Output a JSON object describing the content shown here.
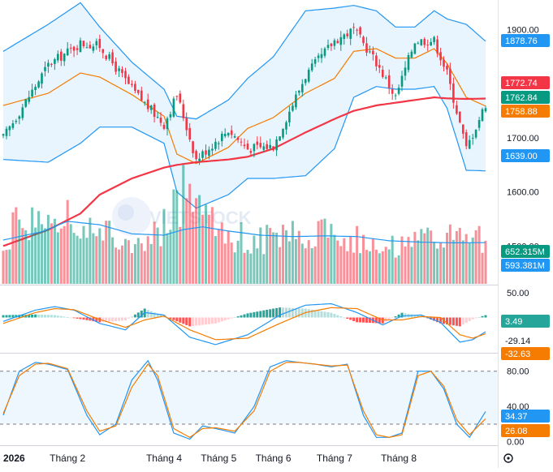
{
  "chart_data": [
    {
      "type": "candlestick",
      "panel": "price",
      "yticks": [
        1900,
        1800,
        1700,
        1600,
        1500
      ],
      "ytick_labels": [
        "1900.00",
        "1800.00",
        "1700.00",
        "1600.00",
        "1500.00"
      ],
      "ylim": [
        1430,
        1955
      ],
      "overlays": [
        {
          "label": "1878.76",
          "role": "bollinger-upper",
          "value": 1878.76,
          "color": "#2196f3"
        },
        {
          "label": "1772.74",
          "role": "ma200",
          "value": 1772.74,
          "color": "#f23645"
        },
        {
          "label": "1762.84",
          "role": "last-close",
          "value": 1762.84,
          "color": "#089981"
        },
        {
          "label": "1758.88",
          "role": "bollinger-middle",
          "value": 1758.88,
          "color": "#f57c00"
        },
        {
          "label": "1639.00",
          "role": "bollinger-lower",
          "value": 1639.0,
          "color": "#2196f3"
        }
      ],
      "x_keypoints": [
        0,
        14,
        24,
        30,
        40,
        50,
        54,
        60,
        70,
        76,
        84,
        94,
        103,
        109,
        116,
        122,
        128,
        134,
        138,
        144,
        150
      ],
      "close_keypoints": [
        1700,
        1835,
        1875,
        1870,
        1790,
        1725,
        1780,
        1660,
        1715,
        1680,
        1685,
        1815,
        1880,
        1900,
        1840,
        1775,
        1880,
        1880,
        1820,
        1680,
        1762.84
      ],
      "upper_keypoints": [
        1860,
        1910,
        1950,
        1905,
        1840,
        1790,
        1740,
        1735,
        1770,
        1810,
        1850,
        1935,
        1940,
        1945,
        1935,
        1905,
        1905,
        1935,
        1920,
        1910,
        1878.76
      ],
      "lower_keypoints": [
        1660,
        1655,
        1690,
        1720,
        1720,
        1690,
        1600,
        1570,
        1595,
        1625,
        1625,
        1630,
        1680,
        1775,
        1795,
        1790,
        1790,
        1795,
        1755,
        1640,
        1639
      ],
      "ma200_keypoints": [
        1500,
        1530,
        1560,
        1595,
        1625,
        1645,
        1650,
        1655,
        1660,
        1665,
        1680,
        1710,
        1735,
        1750,
        1760,
        1765,
        1770,
        1775,
        1773,
        1772,
        1772.74
      ],
      "candle_count": 151,
      "colors": {
        "up": "#089981",
        "down": "#f23645",
        "upper_band": "#2196f3",
        "middle_band": "#f57c00",
        "ma": "#f23645"
      }
    },
    {
      "type": "bar",
      "panel": "volume",
      "overlays": [
        {
          "label": "652.315M",
          "role": "volume",
          "value": 652.315,
          "color": "#089981"
        },
        {
          "label": "593.381M",
          "role": "volume-ma",
          "value": 593.381,
          "color": "#2196f3"
        }
      ],
      "ylim": [
        0,
        1400
      ],
      "x_keypoints": [
        0,
        12,
        20,
        30,
        40,
        50,
        56,
        62,
        70,
        80,
        90,
        100,
        110,
        120,
        130,
        140,
        150
      ],
      "volume_keypoints": [
        700,
        1050,
        900,
        750,
        550,
        800,
        1300,
        900,
        700,
        650,
        700,
        800,
        650,
        550,
        600,
        650,
        652
      ],
      "ma_keypoints": [
        630,
        750,
        900,
        850,
        720,
        700,
        780,
        820,
        760,
        700,
        680,
        690,
        680,
        620,
        600,
        590,
        593
      ]
    },
    {
      "type": "line",
      "panel": "macd",
      "ytick_labels": [
        "50.00"
      ],
      "ylim": [
        -70,
        65
      ],
      "overlays": [
        {
          "label": "3.49",
          "role": "histogram",
          "value": 3.49,
          "color": "#26a69a"
        },
        {
          "label": "-29.14",
          "role": "macd",
          "value": -29.14,
          "color": "#2196f3"
        },
        {
          "label": "-32.63",
          "role": "signal",
          "value": -32.63,
          "color": "#f57c00"
        }
      ],
      "x_keypoints": [
        0,
        10,
        16,
        22,
        30,
        38,
        44,
        50,
        58,
        66,
        76,
        86,
        94,
        102,
        110,
        118,
        124,
        130,
        136,
        142,
        146,
        150
      ],
      "macd_keypoints": [
        -8,
        15,
        22,
        15,
        -12,
        -25,
        10,
        5,
        -40,
        -55,
        -35,
        5,
        25,
        28,
        10,
        -15,
        3,
        5,
        -10,
        -50,
        -45,
        -29
      ],
      "signal_keypoints": [
        -12,
        10,
        18,
        16,
        -4,
        -20,
        -5,
        3,
        -25,
        -45,
        -42,
        -12,
        10,
        20,
        18,
        -5,
        -5,
        2,
        0,
        -35,
        -42,
        -33
      ]
    },
    {
      "type": "line",
      "panel": "stochastic",
      "yticks": [
        80,
        40,
        0
      ],
      "ytick_labels": [
        "80.00",
        "40.00",
        "0.00"
      ],
      "band": [
        20,
        80
      ],
      "ylim": [
        -3,
        100
      ],
      "overlays": [
        {
          "label": "34.37",
          "role": "k-line",
          "value": 34.37,
          "color": "#2196f3"
        },
        {
          "label": "26.08",
          "role": "d-line",
          "value": 26.08,
          "color": "#f57c00"
        }
      ],
      "x_keypoints": [
        0,
        5,
        10,
        14,
        20,
        26,
        30,
        35,
        40,
        45,
        48,
        53,
        58,
        62,
        66,
        72,
        78,
        83,
        88,
        92,
        97,
        102,
        107,
        112,
        116,
        120,
        124,
        129,
        133,
        137,
        141,
        145,
        150
      ],
      "k_keypoints": [
        30,
        80,
        90,
        88,
        82,
        30,
        8,
        20,
        70,
        92,
        70,
        10,
        3,
        18,
        15,
        10,
        40,
        85,
        92,
        90,
        88,
        85,
        88,
        30,
        5,
        5,
        10,
        80,
        80,
        60,
        20,
        5,
        34.37
      ],
      "d_keypoints": [
        32,
        75,
        88,
        89,
        83,
        35,
        12,
        18,
        62,
        88,
        75,
        15,
        5,
        15,
        16,
        12,
        35,
        80,
        90,
        90,
        88,
        86,
        87,
        35,
        8,
        5,
        8,
        75,
        80,
        63,
        25,
        8,
        26.08
      ]
    }
  ],
  "x_axis": {
    "labels": [
      "2026",
      "Tháng 2",
      "Tháng 4",
      "Tháng 5",
      "Tháng 6",
      "Tháng 7",
      "Tháng 8"
    ],
    "label_positions": [
      0,
      20,
      50,
      67,
      84,
      103,
      123
    ]
  },
  "watermark": {
    "text": "VIETSTOCK"
  }
}
